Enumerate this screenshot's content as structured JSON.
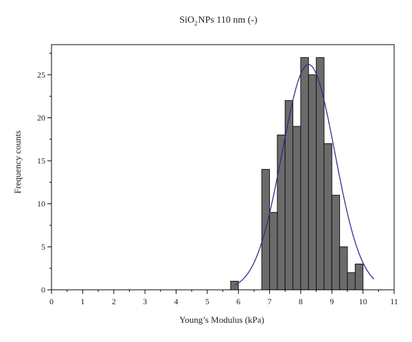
{
  "chart_data": {
    "type": "bar",
    "title": {
      "main": "SiO",
      "sub": "2",
      "rest": "NPs 110 nm (-)"
    },
    "xlabel": "Young’s Modulus (kPa)",
    "ylabel": "Frequency counts",
    "xlim": [
      0,
      11
    ],
    "ylim": [
      0,
      28.5
    ],
    "x_ticks": [
      "0",
      "1",
      "2",
      "3",
      "4",
      "5",
      "6",
      "7",
      "8",
      "9",
      "10",
      "11"
    ],
    "y_ticks": [
      "0",
      "5",
      "10",
      "15",
      "20",
      "25"
    ],
    "bin_width": 0.25,
    "bars": [
      {
        "x": 5.75,
        "value": 1
      },
      {
        "x": 6.75,
        "value": 14
      },
      {
        "x": 7.0,
        "value": 9
      },
      {
        "x": 7.25,
        "value": 18
      },
      {
        "x": 7.5,
        "value": 22
      },
      {
        "x": 7.75,
        "value": 19
      },
      {
        "x": 8.0,
        "value": 27
      },
      {
        "x": 8.25,
        "value": 25
      },
      {
        "x": 8.5,
        "value": 27
      },
      {
        "x": 8.75,
        "value": 17
      },
      {
        "x": 9.0,
        "value": 11
      },
      {
        "x": 9.25,
        "value": 5
      },
      {
        "x": 9.5,
        "value": 2
      },
      {
        "x": 9.75,
        "value": 3
      }
    ],
    "fit": {
      "type": "gaussian",
      "mean": 8.25,
      "sigma": 0.85,
      "amplitude": 26.2,
      "x_range": [
        5.9,
        10.35
      ]
    },
    "colors": {
      "bar_fill": "#6b6b6b",
      "bar_stroke": "#111111",
      "fit_line": "#2b2b8c",
      "axis": "#000000"
    },
    "grid": false,
    "legend": "none"
  }
}
